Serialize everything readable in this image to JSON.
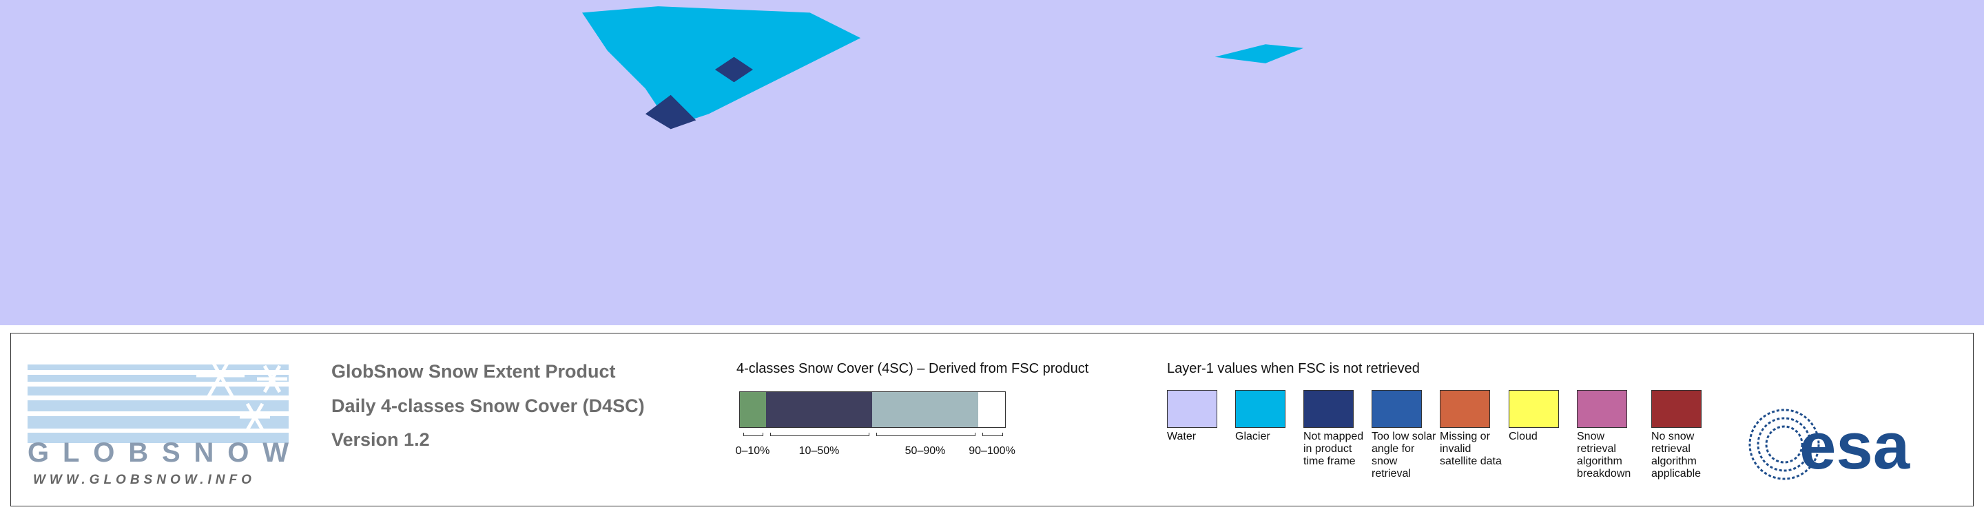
{
  "product": {
    "lines": [
      "GlobSnow Snow Extent Product",
      "Daily 4-classes Snow Cover (D4SC)",
      "Version 1.2"
    ]
  },
  "logo": {
    "name": "GLOBSNOW",
    "url": "WWW.GLOBSNOW.INFO"
  },
  "snow_cover_legend": {
    "title": "4-classes Snow Cover (4SC) – Derived from FSC product",
    "classes": [
      {
        "label": "0–10%",
        "color": "#6c9a6a"
      },
      {
        "label": "10–50%",
        "color": "#3f3f5e"
      },
      {
        "label": "50–90%",
        "color": "#a2b9be"
      },
      {
        "label": "90–100%",
        "color": "#ffffff"
      }
    ]
  },
  "layer1_legend": {
    "title": "Layer-1 values when FSC is not retrieved",
    "items": [
      {
        "label": "Water",
        "color": "#c8c8fa"
      },
      {
        "label": "Glacier",
        "color": "#00b4e6"
      },
      {
        "label": "Not mapped in product time frame",
        "color": "#253a7a"
      },
      {
        "label": "Too low solar angle for snow retrieval",
        "color": "#2b5ea9"
      },
      {
        "label": "Missing or invalid satellite data",
        "color": "#d06540"
      },
      {
        "label": "Cloud",
        "color": "#ffff5a"
      },
      {
        "label": "Snow retrieval algorithm breakdown",
        "color": "#c0679f"
      },
      {
        "label": "No snow retrieval algorithm applicable",
        "color": "#9a2d30"
      }
    ]
  },
  "agency_logo": "esa"
}
